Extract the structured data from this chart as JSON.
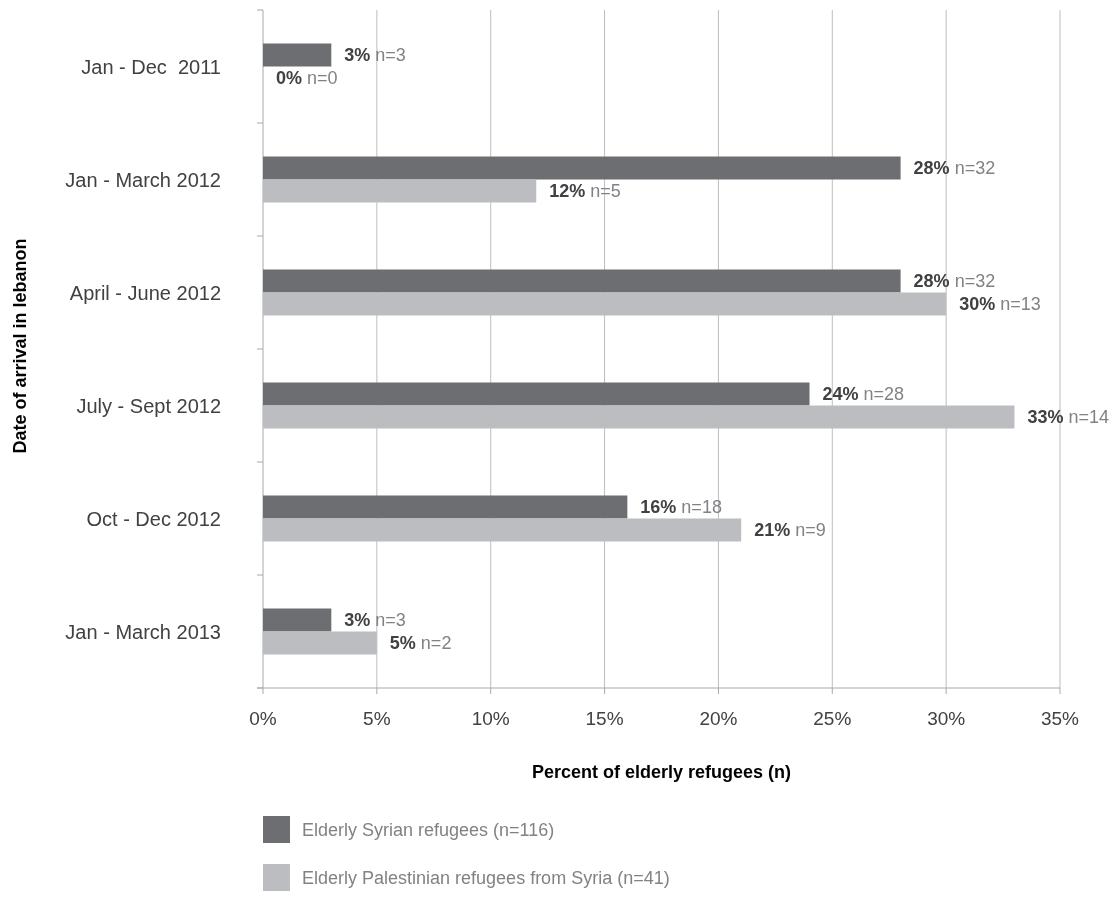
{
  "chart_data": {
    "type": "bar",
    "orientation": "horizontal",
    "xlabel": "Percent of elderly refugees (n)",
    "ylabel": "Date of arrival in lebanon",
    "categories": [
      "Jan - Dec  2011",
      "Jan - March 2012",
      "April - June 2012",
      "July - Sept 2012",
      "Oct - Dec 2012",
      "Jan - March 2013"
    ],
    "series": [
      {
        "name": "Elderly Syrian refugees (n=116)",
        "color": "#6d6e71",
        "values": [
          3,
          28,
          28,
          24,
          16,
          3
        ],
        "value_labels": [
          "3% n=3",
          "28% n=32",
          "28% n=32",
          "24% n=28",
          "16% n=18",
          "3% n=3"
        ]
      },
      {
        "name": "Elderly Palestinian refugees from Syria (n=41)",
        "color": "#bcbdc0",
        "values": [
          0,
          12,
          30,
          33,
          21,
          5
        ],
        "value_labels": [
          "0% n=0",
          "12% n=5",
          "30% n=13",
          "33% n=14",
          "21% n=9",
          "5% n=2"
        ]
      }
    ],
    "xlim": [
      0,
      35
    ],
    "xticks": [
      {
        "value": 0,
        "label": "0%"
      },
      {
        "value": 5,
        "label": "5%"
      },
      {
        "value": 10,
        "label": "10%"
      },
      {
        "value": 15,
        "label": "15%"
      },
      {
        "value": 20,
        "label": "20%"
      },
      {
        "value": 25,
        "label": "25%"
      },
      {
        "value": 30,
        "label": "30%"
      },
      {
        "value": 35,
        "label": "35%"
      }
    ],
    "grid": "x",
    "legend": "bottom"
  }
}
